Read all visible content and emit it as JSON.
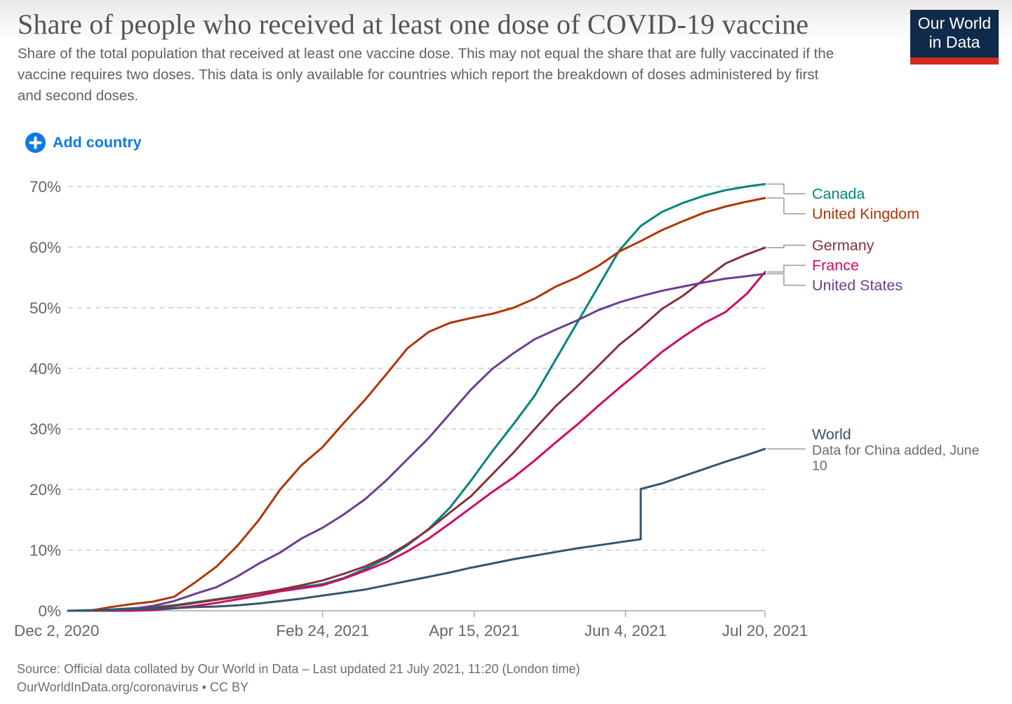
{
  "header": {
    "title": "Share of people who received at least one dose of COVID-19 vaccine",
    "subtitle": "Share of the total population that received at least one vaccine dose. This may not equal the share that are fully vaccinated if the vaccine requires two doses. This data is only available for countries which report the breakdown of doses administered by first and second doses.",
    "logo": {
      "line1": "Our World",
      "line2": "in Data",
      "bg": "#102A4B",
      "accent": "#D52A20"
    }
  },
  "toolbar": {
    "add_country_label": "Add country",
    "accent_blue": "#0D7AE4"
  },
  "footer": {
    "source_line1": "Source: Official data collated by Our World in Data – Last updated 21 July 2021, 11:20 (London time)",
    "source_line2": "OurWorldInData.org/coronavirus • CC BY"
  },
  "chart_data": {
    "type": "line",
    "title": "Share of people who received at least one dose of COVID-19 vaccine",
    "grid": "dashed-horizontal",
    "legend_position": "right-end-labels",
    "x_axis": {
      "unit": "date",
      "total_days": 230,
      "range": [
        "Dec 2, 2020",
        "Jul 20, 2021"
      ],
      "ticks": [
        {
          "day": 0,
          "label": "Dec 2, 2020"
        },
        {
          "day": 84,
          "label": "Feb 24, 2021"
        },
        {
          "day": 134,
          "label": "Apr 15, 2021"
        },
        {
          "day": 184,
          "label": "Jun 4, 2021"
        },
        {
          "day": 230,
          "label": "Jul 20, 2021"
        }
      ]
    },
    "y_axis": {
      "min": 0,
      "max": 70,
      "tick_step": 10,
      "unit": "%"
    },
    "series": [
      {
        "name": "Canada",
        "color": "#00847E",
        "label_pct": 68.8,
        "conn_pct": 68.8,
        "points": [
          [
            0,
            0
          ],
          [
            7,
            0.1
          ],
          [
            14,
            0.2
          ],
          [
            21,
            0.4
          ],
          [
            28,
            0.6
          ],
          [
            35,
            0.9
          ],
          [
            42,
            1.4
          ],
          [
            49,
            1.9
          ],
          [
            56,
            2.4
          ],
          [
            63,
            2.9
          ],
          [
            70,
            3.4
          ],
          [
            77,
            3.9
          ],
          [
            84,
            4.4
          ],
          [
            91,
            5.4
          ],
          [
            98,
            6.9
          ],
          [
            105,
            8.6
          ],
          [
            112,
            10.8
          ],
          [
            119,
            13.5
          ],
          [
            126,
            17.0
          ],
          [
            133,
            21.5
          ],
          [
            140,
            26.3
          ],
          [
            147,
            30.8
          ],
          [
            154,
            35.5
          ],
          [
            161,
            41.5
          ],
          [
            168,
            47.5
          ],
          [
            175,
            53.5
          ],
          [
            182,
            59.5
          ],
          [
            189,
            63.5
          ],
          [
            196,
            65.8
          ],
          [
            203,
            67.3
          ],
          [
            210,
            68.5
          ],
          [
            217,
            69.4
          ],
          [
            224,
            70.0
          ],
          [
            230,
            70.4
          ]
        ]
      },
      {
        "name": "United Kingdom",
        "color": "#B13507",
        "label_pct": 65.5,
        "conn_pct": 65.5,
        "points": [
          [
            0,
            0
          ],
          [
            7,
            0
          ],
          [
            14,
            0.6
          ],
          [
            21,
            1.1
          ],
          [
            28,
            1.5
          ],
          [
            35,
            2.3
          ],
          [
            42,
            4.7
          ],
          [
            49,
            7.3
          ],
          [
            56,
            10.8
          ],
          [
            63,
            15.0
          ],
          [
            70,
            20.0
          ],
          [
            77,
            24.0
          ],
          [
            84,
            27.0
          ],
          [
            91,
            31.0
          ],
          [
            98,
            34.8
          ],
          [
            105,
            39.0
          ],
          [
            112,
            43.3
          ],
          [
            119,
            46.0
          ],
          [
            126,
            47.5
          ],
          [
            133,
            48.3
          ],
          [
            140,
            49.0
          ],
          [
            147,
            50.0
          ],
          [
            154,
            51.5
          ],
          [
            161,
            53.5
          ],
          [
            168,
            55.0
          ],
          [
            175,
            56.9
          ],
          [
            182,
            59.3
          ],
          [
            189,
            61.0
          ],
          [
            196,
            62.8
          ],
          [
            203,
            64.3
          ],
          [
            210,
            65.7
          ],
          [
            217,
            66.7
          ],
          [
            224,
            67.5
          ],
          [
            230,
            68.1
          ]
        ]
      },
      {
        "name": "Germany",
        "color": "#883039",
        "label_pct": 60.3,
        "conn_pct": 60.3,
        "points": [
          [
            0,
            0
          ],
          [
            7,
            0
          ],
          [
            14,
            0
          ],
          [
            21,
            0.2
          ],
          [
            28,
            0.4
          ],
          [
            35,
            0.8
          ],
          [
            42,
            1.3
          ],
          [
            49,
            1.8
          ],
          [
            56,
            2.3
          ],
          [
            63,
            2.9
          ],
          [
            70,
            3.5
          ],
          [
            77,
            4.2
          ],
          [
            84,
            5.0
          ],
          [
            91,
            6.1
          ],
          [
            98,
            7.3
          ],
          [
            105,
            8.9
          ],
          [
            112,
            11.0
          ],
          [
            119,
            13.4
          ],
          [
            126,
            16.2
          ],
          [
            133,
            18.9
          ],
          [
            140,
            22.5
          ],
          [
            147,
            26.1
          ],
          [
            154,
            30.0
          ],
          [
            161,
            33.8
          ],
          [
            168,
            37.0
          ],
          [
            175,
            40.4
          ],
          [
            182,
            43.9
          ],
          [
            189,
            46.7
          ],
          [
            196,
            49.8
          ],
          [
            203,
            52.0
          ],
          [
            210,
            54.7
          ],
          [
            217,
            57.3
          ],
          [
            224,
            58.8
          ],
          [
            230,
            59.9
          ]
        ]
      },
      {
        "name": "France",
        "color": "#CF0A66",
        "label_pct": 57.0,
        "conn_pct": 57.0,
        "points": [
          [
            0,
            0
          ],
          [
            7,
            0
          ],
          [
            14,
            0
          ],
          [
            21,
            0
          ],
          [
            28,
            0.1
          ],
          [
            35,
            0.4
          ],
          [
            42,
            0.8
          ],
          [
            49,
            1.3
          ],
          [
            56,
            1.9
          ],
          [
            63,
            2.5
          ],
          [
            70,
            3.2
          ],
          [
            77,
            3.7
          ],
          [
            84,
            4.2
          ],
          [
            91,
            5.3
          ],
          [
            98,
            6.6
          ],
          [
            105,
            8.0
          ],
          [
            112,
            9.8
          ],
          [
            119,
            11.9
          ],
          [
            126,
            14.4
          ],
          [
            133,
            17.0
          ],
          [
            140,
            19.6
          ],
          [
            147,
            22.0
          ],
          [
            154,
            24.8
          ],
          [
            161,
            27.8
          ],
          [
            168,
            30.7
          ],
          [
            175,
            33.8
          ],
          [
            182,
            36.8
          ],
          [
            189,
            39.7
          ],
          [
            196,
            42.7
          ],
          [
            203,
            45.2
          ],
          [
            210,
            47.5
          ],
          [
            217,
            49.3
          ],
          [
            224,
            52.3
          ],
          [
            230,
            55.9
          ]
        ]
      },
      {
        "name": "United States",
        "color": "#6D3E91",
        "label_pct": 53.7,
        "conn_pct": 53.7,
        "points": [
          [
            0,
            0
          ],
          [
            7,
            0
          ],
          [
            14,
            0.1
          ],
          [
            21,
            0.3
          ],
          [
            28,
            0.8
          ],
          [
            35,
            1.6
          ],
          [
            42,
            2.8
          ],
          [
            49,
            3.9
          ],
          [
            56,
            5.7
          ],
          [
            63,
            7.8
          ],
          [
            70,
            9.6
          ],
          [
            77,
            11.9
          ],
          [
            84,
            13.7
          ],
          [
            91,
            15.9
          ],
          [
            98,
            18.4
          ],
          [
            105,
            21.5
          ],
          [
            112,
            25.0
          ],
          [
            119,
            28.5
          ],
          [
            126,
            32.5
          ],
          [
            133,
            36.5
          ],
          [
            140,
            39.9
          ],
          [
            147,
            42.5
          ],
          [
            154,
            44.8
          ],
          [
            161,
            46.4
          ],
          [
            168,
            47.9
          ],
          [
            175,
            49.6
          ],
          [
            182,
            50.9
          ],
          [
            189,
            51.9
          ],
          [
            196,
            52.8
          ],
          [
            203,
            53.5
          ],
          [
            210,
            54.2
          ],
          [
            217,
            54.8
          ],
          [
            224,
            55.2
          ],
          [
            230,
            55.6
          ]
        ]
      },
      {
        "name": "World",
        "color": "#38546C",
        "label_pct": 29.1,
        "conn_pct": 26.7,
        "annotation_lines": [
          "Data for China added, June",
          "10"
        ],
        "points": [
          [
            0,
            0
          ],
          [
            7,
            0
          ],
          [
            14,
            0.1
          ],
          [
            21,
            0.2
          ],
          [
            28,
            0.3
          ],
          [
            35,
            0.4
          ],
          [
            42,
            0.6
          ],
          [
            49,
            0.7
          ],
          [
            56,
            0.9
          ],
          [
            63,
            1.2
          ],
          [
            70,
            1.6
          ],
          [
            77,
            2.0
          ],
          [
            84,
            2.5
          ],
          [
            91,
            3.0
          ],
          [
            98,
            3.5
          ],
          [
            105,
            4.2
          ],
          [
            112,
            4.9
          ],
          [
            119,
            5.6
          ],
          [
            126,
            6.3
          ],
          [
            133,
            7.1
          ],
          [
            140,
            7.8
          ],
          [
            147,
            8.5
          ],
          [
            154,
            9.1
          ],
          [
            161,
            9.7
          ],
          [
            168,
            10.3
          ],
          [
            175,
            10.8
          ],
          [
            182,
            11.3
          ],
          [
            189,
            11.8
          ],
          [
            189,
            20.1
          ],
          [
            196,
            21.0
          ],
          [
            203,
            22.2
          ],
          [
            210,
            23.4
          ],
          [
            217,
            24.6
          ],
          [
            224,
            25.7
          ],
          [
            230,
            26.7
          ]
        ]
      }
    ]
  }
}
